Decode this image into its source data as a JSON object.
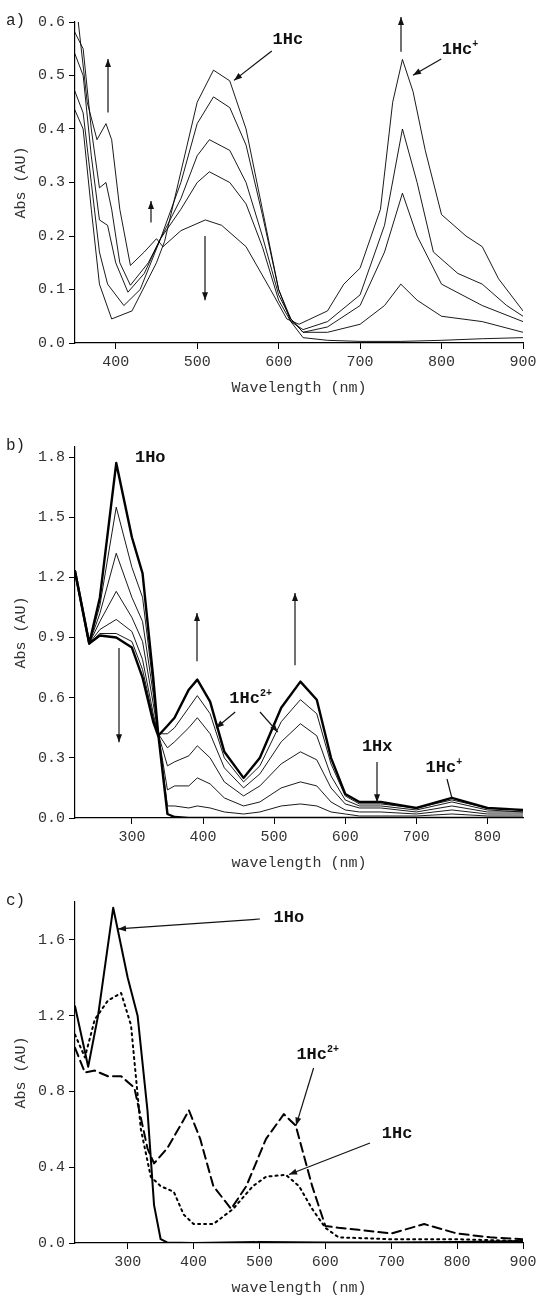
{
  "chart_data": [
    {
      "type": "line",
      "title": "a)",
      "xlabel": "Wavelength (nm)",
      "ylabel": "Abs (AU)",
      "xlim": [
        350,
        900
      ],
      "xticks": [
        400,
        500,
        600,
        700,
        800,
        900
      ],
      "ylim": [
        0,
        0.6
      ],
      "yticks": [
        {
          "value": 0,
          "label": "0.0"
        },
        {
          "value": 0.1,
          "label": "0.1"
        },
        {
          "value": 0.2,
          "label": "0.2"
        },
        {
          "value": 0.3,
          "label": "0.3"
        },
        {
          "value": 0.4,
          "label": "0.4"
        },
        {
          "value": 0.5,
          "label": "0.5"
        },
        {
          "value": 0.6,
          "label": "0.6"
        }
      ],
      "line_style": "solid",
      "series": [
        {
          "color": "#000000",
          "x": [
            350,
            360,
            370,
            380,
            395,
            420,
            450,
            460,
            480,
            500,
            520,
            540,
            560,
            580,
            600,
            615,
            630,
            660,
            700,
            750,
            800,
            850,
            900
          ],
          "values": [
            0.435,
            0.4,
            0.25,
            0.11,
            0.045,
            0.06,
            0.15,
            0.19,
            0.32,
            0.45,
            0.51,
            0.49,
            0.4,
            0.25,
            0.1,
            0.04,
            0.01,
            0.005,
            0.003,
            0.003,
            0.005,
            0.008,
            0.01
          ]
        },
        {
          "color": "#000000",
          "x": [
            350,
            360,
            370,
            380,
            390,
            410,
            430,
            455,
            480,
            500,
            520,
            540,
            560,
            580,
            600,
            615,
            630,
            660,
            700,
            730,
            750,
            770,
            800,
            850,
            900
          ],
          "values": [
            0.47,
            0.43,
            0.3,
            0.17,
            0.11,
            0.07,
            0.1,
            0.195,
            0.3,
            0.41,
            0.46,
            0.44,
            0.37,
            0.24,
            0.1,
            0.045,
            0.02,
            0.02,
            0.035,
            0.07,
            0.11,
            0.08,
            0.05,
            0.04,
            0.02
          ]
        },
        {
          "color": "#000000",
          "x": [
            350,
            360,
            370,
            380,
            390,
            400,
            415,
            435,
            455,
            480,
            500,
            515,
            540,
            560,
            580,
            600,
            615,
            630,
            660,
            700,
            730,
            752,
            770,
            800,
            850,
            900
          ],
          "values": [
            0.54,
            0.5,
            0.35,
            0.23,
            0.22,
            0.15,
            0.095,
            0.13,
            0.195,
            0.27,
            0.35,
            0.38,
            0.36,
            0.3,
            0.2,
            0.09,
            0.045,
            0.02,
            0.03,
            0.07,
            0.17,
            0.28,
            0.2,
            0.11,
            0.07,
            0.04
          ]
        },
        {
          "color": "#000000",
          "x": [
            350,
            360,
            370,
            380,
            388,
            395,
            405,
            418,
            440,
            455,
            480,
            500,
            515,
            540,
            560,
            580,
            600,
            615,
            630,
            660,
            700,
            730,
            752,
            770,
            790,
            820,
            850,
            880,
            900
          ],
          "values": [
            0.58,
            0.55,
            0.4,
            0.29,
            0.3,
            0.25,
            0.15,
            0.108,
            0.15,
            0.195,
            0.25,
            0.3,
            0.32,
            0.3,
            0.26,
            0.18,
            0.08,
            0.04,
            0.025,
            0.04,
            0.09,
            0.22,
            0.4,
            0.3,
            0.17,
            0.13,
            0.11,
            0.07,
            0.05
          ]
        },
        {
          "color": "#000000",
          "x": [
            354,
            365,
            377,
            388,
            395,
            405,
            418,
            435,
            450,
            458,
            480,
            510,
            530,
            560,
            590,
            610,
            625,
            660,
            680,
            700,
            725,
            740,
            752,
            765,
            780,
            800,
            830,
            850,
            870,
            900
          ],
          "values": [
            0.6,
            0.45,
            0.38,
            0.41,
            0.38,
            0.25,
            0.145,
            0.17,
            0.195,
            0.18,
            0.21,
            0.23,
            0.22,
            0.18,
            0.1,
            0.045,
            0.035,
            0.06,
            0.11,
            0.14,
            0.25,
            0.45,
            0.53,
            0.47,
            0.36,
            0.24,
            0.2,
            0.18,
            0.12,
            0.06
          ]
        }
      ],
      "annotations": [
        {
          "text": "1Hc",
          "x": 545,
          "y": 0.49
        },
        {
          "text": "1Hc$^{+}$",
          "x": 765,
          "y": 0.5
        }
      ]
    },
    {
      "type": "line",
      "title": "b)",
      "xlabel": "wavelength (nm)",
      "ylabel": "Abs (AU)",
      "xlim": [
        220,
        850
      ],
      "xticks": [
        300,
        400,
        500,
        600,
        700,
        800
      ],
      "ylim": [
        0,
        1.85
      ],
      "yticks": [
        {
          "value": 0,
          "label": "0.0"
        },
        {
          "value": 0.3,
          "label": "0.3"
        },
        {
          "value": 0.6,
          "label": "0.6"
        },
        {
          "value": 0.9,
          "label": "0.9"
        },
        {
          "value": 1.2,
          "label": "1.2"
        },
        {
          "value": 1.5,
          "label": "1.5"
        },
        {
          "value": 1.8,
          "label": "1.8"
        }
      ],
      "line_style": "solid",
      "series": [
        {
          "color": "#000000",
          "x": [
            220,
            240,
            255,
            278,
            300,
            315,
            330,
            337,
            350,
            360,
            380,
            392,
            410,
            430,
            457,
            480,
            510,
            537,
            560,
            580,
            600,
            620,
            650,
            700,
            750,
            800,
            850
          ],
          "values": [
            1.23,
            0.87,
            1.1,
            1.77,
            1.4,
            1.22,
            0.7,
            0.42,
            0.02,
            0.005,
            0,
            0,
            0,
            0,
            0,
            0,
            0,
            0,
            0,
            0,
            0,
            0,
            0,
            0,
            0,
            0,
            0
          ]
        },
        {
          "color": "#000000",
          "x": [
            220,
            240,
            255,
            278,
            300,
            315,
            330,
            337,
            350,
            360,
            380,
            392,
            410,
            430,
            457,
            480,
            510,
            537,
            560,
            580,
            600,
            620,
            650,
            700,
            750,
            800,
            850
          ],
          "values": [
            1.23,
            0.87,
            1.06,
            1.55,
            1.25,
            1.1,
            0.66,
            0.42,
            0.06,
            0.06,
            0.05,
            0.06,
            0.05,
            0.03,
            0.02,
            0.03,
            0.06,
            0.07,
            0.06,
            0.03,
            0.02,
            0.01,
            0.01,
            0.01,
            0.02,
            0.01,
            0.01
          ]
        },
        {
          "color": "#000000",
          "x": [
            220,
            240,
            255,
            278,
            300,
            315,
            330,
            337,
            350,
            360,
            380,
            392,
            410,
            430,
            457,
            480,
            510,
            537,
            560,
            580,
            600,
            620,
            650,
            700,
            750,
            800,
            850
          ],
          "values": [
            1.23,
            0.87,
            1.02,
            1.32,
            1.1,
            0.98,
            0.62,
            0.42,
            0.14,
            0.16,
            0.16,
            0.2,
            0.17,
            0.1,
            0.06,
            0.08,
            0.15,
            0.18,
            0.16,
            0.08,
            0.04,
            0.03,
            0.03,
            0.02,
            0.04,
            0.02,
            0.02
          ]
        },
        {
          "color": "#000000",
          "x": [
            220,
            240,
            255,
            278,
            300,
            315,
            330,
            337,
            350,
            360,
            380,
            392,
            410,
            430,
            457,
            480,
            510,
            537,
            560,
            580,
            600,
            620,
            650,
            700,
            750,
            800,
            850
          ],
          "values": [
            1.23,
            0.87,
            0.98,
            1.13,
            1,
            0.88,
            0.57,
            0.42,
            0.26,
            0.28,
            0.31,
            0.36,
            0.3,
            0.18,
            0.11,
            0.16,
            0.27,
            0.33,
            0.29,
            0.15,
            0.07,
            0.05,
            0.05,
            0.03,
            0.06,
            0.03,
            0.03
          ]
        },
        {
          "color": "#000000",
          "x": [
            220,
            240,
            255,
            278,
            300,
            315,
            330,
            337,
            350,
            360,
            380,
            392,
            410,
            430,
            457,
            480,
            510,
            537,
            560,
            580,
            600,
            620,
            650,
            700,
            750,
            800,
            850
          ],
          "values": [
            1.23,
            0.87,
            0.94,
            0.99,
            0.93,
            0.79,
            0.52,
            0.42,
            0.35,
            0.38,
            0.45,
            0.5,
            0.42,
            0.25,
            0.15,
            0.22,
            0.38,
            0.47,
            0.41,
            0.21,
            0.09,
            0.06,
            0.06,
            0.04,
            0.08,
            0.04,
            0.03
          ]
        },
        {
          "color": "#000000",
          "x": [
            220,
            240,
            255,
            278,
            300,
            315,
            330,
            337,
            350,
            360,
            380,
            392,
            410,
            430,
            457,
            480,
            510,
            537,
            560,
            580,
            600,
            620,
            650,
            700,
            750,
            800,
            850
          ],
          "values": [
            1.23,
            0.87,
            0.92,
            0.92,
            0.88,
            0.74,
            0.5,
            0.42,
            0.42,
            0.45,
            0.55,
            0.61,
            0.52,
            0.3,
            0.18,
            0.26,
            0.48,
            0.59,
            0.52,
            0.27,
            0.11,
            0.07,
            0.07,
            0.05,
            0.09,
            0.05,
            0.04
          ]
        },
        {
          "color": "#000000",
          "x": [
            220,
            240,
            255,
            278,
            300,
            315,
            330,
            337,
            350,
            360,
            380,
            392,
            410,
            430,
            457,
            480,
            510,
            537,
            560,
            580,
            600,
            620,
            650,
            700,
            750,
            800,
            850
          ],
          "values": [
            1.23,
            0.87,
            0.91,
            0.9,
            0.85,
            0.7,
            0.48,
            0.41,
            0.46,
            0.5,
            0.64,
            0.69,
            0.58,
            0.33,
            0.2,
            0.3,
            0.55,
            0.68,
            0.59,
            0.3,
            0.12,
            0.08,
            0.08,
            0.05,
            0.1,
            0.05,
            0.04
          ]
        }
      ],
      "annotations": [
        {
          "text": "1Ho",
          "x": 278,
          "y": 1.77
        },
        "1Hc$^{2+}$",
        {
          "text": "1Hx",
          "x": 645,
          "y": 0.08
        },
        {
          "text": "1Hc$^{+}$",
          "x": 750,
          "y": 0.1
        }
      ]
    },
    {
      "type": "line",
      "title": "c)",
      "xlabel": "wavelength (nm)",
      "ylabel": "Abs (AU)",
      "xlim": [
        220,
        900
      ],
      "xticks": [
        300,
        400,
        500,
        600,
        700,
        800,
        900
      ],
      "ylim": [
        0,
        1.8
      ],
      "yticks": [
        {
          "value": 0,
          "label": "0.0"
        },
        {
          "value": 0.4,
          "label": "0.4"
        },
        {
          "value": 0.8,
          "label": "0.8"
        },
        {
          "value": 1.2,
          "label": "1.2"
        },
        {
          "value": 1.6,
          "label": "1.6"
        }
      ],
      "series": [
        {
          "color": "#000000",
          "line_style": "solid",
          "x": [
            220,
            240,
            255,
            278,
            300,
            315,
            330,
            340,
            350,
            360,
            400,
            500,
            600,
            700,
            800,
            900
          ],
          "values": [
            1.25,
            0.93,
            1.2,
            1.77,
            1.4,
            1.2,
            0.7,
            0.2,
            0.02,
            0.003,
            0,
            0.005,
            0.003,
            0.003,
            0.005,
            0.01
          ]
        },
        {
          "color": "#000000",
          "line_style": "dashed",
          "x": [
            220,
            235,
            250,
            270,
            290,
            310,
            330,
            340,
            360,
            380,
            393,
            410,
            430,
            457,
            480,
            510,
            537,
            555,
            580,
            600,
            620,
            650,
            700,
            750,
            800,
            850,
            900
          ],
          "values": [
            1.03,
            0.9,
            0.91,
            0.88,
            0.88,
            0.82,
            0.5,
            0.42,
            0.5,
            0.62,
            0.7,
            0.55,
            0.3,
            0.18,
            0.3,
            0.55,
            0.68,
            0.62,
            0.3,
            0.09,
            0.08,
            0.07,
            0.05,
            0.1,
            0.05,
            0.03,
            0.02
          ]
        },
        {
          "color": "#000000",
          "line_style": "dotted",
          "x": [
            220,
            235,
            250,
            270,
            290,
            305,
            320,
            335,
            350,
            370,
            385,
            400,
            430,
            460,
            490,
            510,
            540,
            560,
            580,
            600,
            620,
            700,
            800,
            900
          ],
          "values": [
            1.1,
            0.98,
            1.18,
            1.28,
            1.32,
            1.15,
            0.6,
            0.35,
            0.3,
            0.27,
            0.15,
            0.1,
            0.1,
            0.18,
            0.3,
            0.35,
            0.36,
            0.3,
            0.18,
            0.08,
            0.03,
            0.02,
            0.02,
            0.01
          ]
        }
      ],
      "annotations": [
        {
          "text": "1Ho",
          "x": 285,
          "y": 1.66
        },
        {
          "text": "1Hc$^{2+}$",
          "x": 555,
          "y": 0.62
        },
        {
          "text": "1Hc",
          "x": 545,
          "y": 0.36
        }
      ]
    }
  ]
}
